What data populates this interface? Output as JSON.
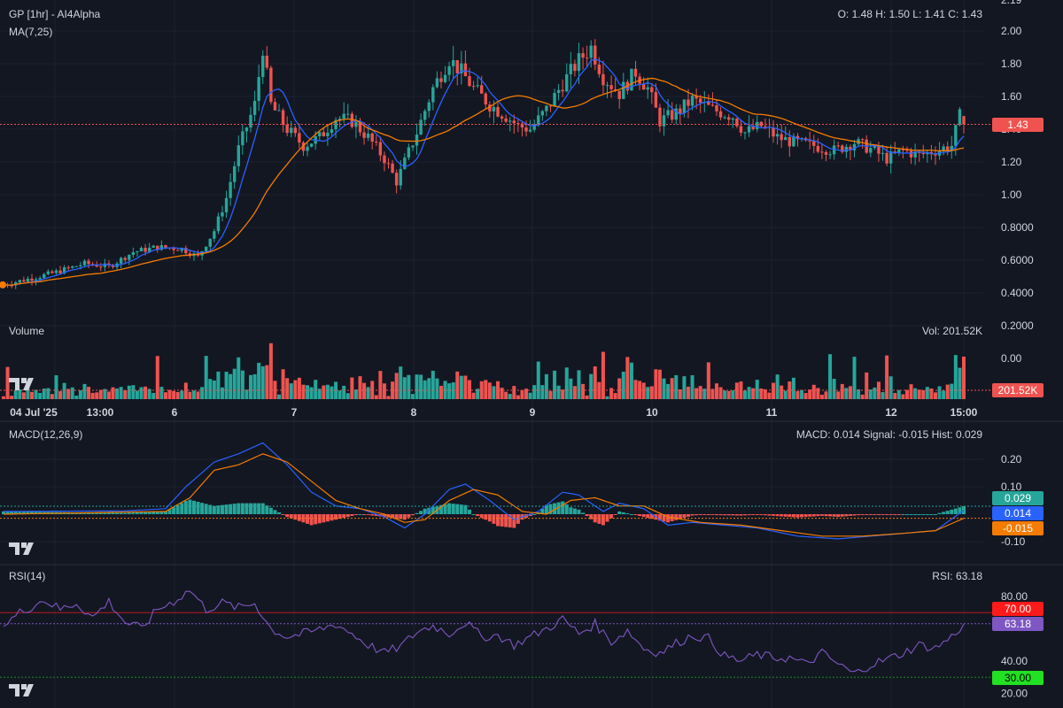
{
  "header": {
    "title": "GP [1hr] - AI4Alpha",
    "ohlc": "O: 1.48 H: 1.50 L: 1.41 C: 1.43",
    "ma_label": "MA(7,25)",
    "volume_label": "Volume",
    "volume_value": "Vol: 201.52K",
    "macd_label": "MACD(12,26,9)",
    "macd_value": "MACD: 0.014 Signal: -0.015 Hist: 0.029",
    "rsi_label": "RSI(14)",
    "rsi_value": "RSI: 63.18"
  },
  "badges": {
    "price": "1.43",
    "volume": "201.52K",
    "hist": "0.029",
    "macd": "0.014",
    "signal": "-0.015",
    "rsi70": "70.00",
    "rsi": "63.18",
    "rsi30": "30.00"
  },
  "colors": {
    "up": "#26a69a",
    "down": "#ef5350",
    "ma_fast": "#2962ff",
    "ma_slow": "#f57c00",
    "rsi": "#7e57c2",
    "background": "#131722"
  },
  "chart_data": [
    {
      "type": "candlestick",
      "title": "GP [1hr] - AI4Alpha",
      "x_ticks": [
        "04 Jul '25",
        "13:00",
        "6",
        "7",
        "8",
        "9",
        "10",
        "11",
        "12",
        "15:00"
      ],
      "y_ticks": [
        "0.00",
        "0.2000",
        "0.4000",
        "0.6000",
        "0.8000",
        "1.00",
        "1.20",
        "1.40",
        "1.60",
        "1.80",
        "2.00",
        "2.19"
      ],
      "ylim": [
        0,
        2.19
      ],
      "last_close": 1.43,
      "close_path": [
        [
          0,
          0.45
        ],
        [
          12,
          0.52
        ],
        [
          20,
          0.58
        ],
        [
          26,
          0.56
        ],
        [
          32,
          0.65
        ],
        [
          38,
          0.68
        ],
        [
          44,
          0.67
        ],
        [
          48,
          0.62
        ],
        [
          52,
          0.78
        ],
        [
          55,
          0.98
        ],
        [
          58,
          1.28
        ],
        [
          62,
          1.55
        ],
        [
          64,
          1.9
        ],
        [
          66,
          1.55
        ],
        [
          70,
          1.4
        ],
        [
          74,
          1.3
        ],
        [
          78,
          1.35
        ],
        [
          82,
          1.47
        ],
        [
          86,
          1.45
        ],
        [
          90,
          1.35
        ],
        [
          94,
          1.22
        ],
        [
          97,
          1.08
        ],
        [
          99,
          1.2
        ],
        [
          102,
          1.38
        ],
        [
          106,
          1.65
        ],
        [
          110,
          1.83
        ],
        [
          113,
          1.75
        ],
        [
          116,
          1.65
        ],
        [
          120,
          1.55
        ],
        [
          124,
          1.48
        ],
        [
          127,
          1.42
        ],
        [
          130,
          1.4
        ],
        [
          134,
          1.52
        ],
        [
          138,
          1.68
        ],
        [
          142,
          1.82
        ],
        [
          145,
          1.9
        ],
        [
          148,
          1.72
        ],
        [
          152,
          1.62
        ],
        [
          156,
          1.75
        ],
        [
          159,
          1.65
        ],
        [
          162,
          1.45
        ],
        [
          166,
          1.5
        ],
        [
          170,
          1.58
        ],
        [
          175,
          1.52
        ],
        [
          180,
          1.48
        ],
        [
          183,
          1.38
        ],
        [
          187,
          1.42
        ],
        [
          191,
          1.35
        ],
        [
          195,
          1.32
        ],
        [
          200,
          1.3
        ],
        [
          205,
          1.27
        ],
        [
          210,
          1.32
        ],
        [
          214,
          1.28
        ],
        [
          218,
          1.22
        ],
        [
          222,
          1.27
        ],
        [
          226,
          1.24
        ],
        [
          230,
          1.27
        ],
        [
          234,
          1.3
        ],
        [
          236,
          1.48
        ],
        [
          237,
          1.43
        ]
      ]
    },
    {
      "type": "bar",
      "title": "Volume",
      "last_value": "201.52K"
    },
    {
      "type": "line",
      "title": "MACD(12,26,9)",
      "y_ticks": [
        "-0.10",
        "0.10",
        "0.20"
      ],
      "ylim": [
        -0.13,
        0.28
      ],
      "macd": 0.014,
      "signal": -0.015,
      "hist": 0.029,
      "macd_path": [
        [
          0,
          0.01
        ],
        [
          30,
          0.012
        ],
        [
          40,
          0.02
        ],
        [
          45,
          0.1
        ],
        [
          52,
          0.19
        ],
        [
          58,
          0.22
        ],
        [
          64,
          0.26
        ],
        [
          70,
          0.18
        ],
        [
          76,
          0.08
        ],
        [
          82,
          0.03
        ],
        [
          88,
          0.02
        ],
        [
          94,
          -0.01
        ],
        [
          99,
          -0.05
        ],
        [
          104,
          0.0
        ],
        [
          110,
          0.09
        ],
        [
          114,
          0.11
        ],
        [
          120,
          0.05
        ],
        [
          126,
          -0.02
        ],
        [
          132,
          0.01
        ],
        [
          138,
          0.08
        ],
        [
          142,
          0.07
        ],
        [
          148,
          0.01
        ],
        [
          152,
          0.04
        ],
        [
          158,
          0.02
        ],
        [
          164,
          -0.04
        ],
        [
          170,
          -0.03
        ],
        [
          178,
          -0.04
        ],
        [
          186,
          -0.05
        ],
        [
          196,
          -0.08
        ],
        [
          206,
          -0.09
        ],
        [
          214,
          -0.08
        ],
        [
          222,
          -0.07
        ],
        [
          230,
          -0.06
        ],
        [
          237,
          0.014
        ]
      ],
      "signal_path": [
        [
          0,
          0.0
        ],
        [
          40,
          0.01
        ],
        [
          46,
          0.06
        ],
        [
          52,
          0.16
        ],
        [
          58,
          0.18
        ],
        [
          64,
          0.22
        ],
        [
          70,
          0.19
        ],
        [
          76,
          0.12
        ],
        [
          82,
          0.05
        ],
        [
          88,
          0.02
        ],
        [
          94,
          0.0
        ],
        [
          99,
          -0.03
        ],
        [
          104,
          -0.02
        ],
        [
          110,
          0.05
        ],
        [
          116,
          0.09
        ],
        [
          122,
          0.07
        ],
        [
          128,
          0.01
        ],
        [
          134,
          0.0
        ],
        [
          140,
          0.05
        ],
        [
          146,
          0.06
        ],
        [
          152,
          0.03
        ],
        [
          158,
          0.03
        ],
        [
          164,
          -0.01
        ],
        [
          172,
          -0.03
        ],
        [
          182,
          -0.04
        ],
        [
          192,
          -0.06
        ],
        [
          202,
          -0.08
        ],
        [
          212,
          -0.08
        ],
        [
          222,
          -0.07
        ],
        [
          230,
          -0.06
        ],
        [
          237,
          -0.015
        ]
      ]
    },
    {
      "type": "line",
      "title": "RSI(14)",
      "y_ticks": [
        "20.00",
        "40.00",
        "80.00"
      ],
      "ylim": [
        20,
        90
      ],
      "levels": [
        70,
        30
      ],
      "last_value": 63.18,
      "rsi_path": [
        [
          0,
          62
        ],
        [
          4,
          70
        ],
        [
          10,
          78
        ],
        [
          14,
          72
        ],
        [
          18,
          76
        ],
        [
          22,
          67
        ],
        [
          26,
          77
        ],
        [
          30,
          64
        ],
        [
          34,
          60
        ],
        [
          38,
          72
        ],
        [
          42,
          77
        ],
        [
          46,
          84
        ],
        [
          50,
          72
        ],
        [
          54,
          76
        ],
        [
          58,
          73
        ],
        [
          62,
          76
        ],
        [
          66,
          60
        ],
        [
          70,
          55
        ],
        [
          76,
          58
        ],
        [
          82,
          63
        ],
        [
          86,
          57
        ],
        [
          90,
          50
        ],
        [
          94,
          45
        ],
        [
          98,
          49
        ],
        [
          102,
          58
        ],
        [
          106,
          62
        ],
        [
          110,
          57
        ],
        [
          114,
          64
        ],
        [
          118,
          55
        ],
        [
          122,
          56
        ],
        [
          126,
          50
        ],
        [
          130,
          55
        ],
        [
          134,
          60
        ],
        [
          138,
          66
        ],
        [
          142,
          57
        ],
        [
          146,
          63
        ],
        [
          150,
          52
        ],
        [
          154,
          59
        ],
        [
          158,
          48
        ],
        [
          162,
          45
        ],
        [
          166,
          51
        ],
        [
          170,
          56
        ],
        [
          174,
          54
        ],
        [
          178,
          43
        ],
        [
          182,
          40
        ],
        [
          186,
          44
        ],
        [
          190,
          42
        ],
        [
          194,
          42
        ],
        [
          198,
          38
        ],
        [
          202,
          45
        ],
        [
          206,
          38
        ],
        [
          210,
          32
        ],
        [
          214,
          38
        ],
        [
          218,
          41
        ],
        [
          222,
          45
        ],
        [
          226,
          50
        ],
        [
          230,
          48
        ],
        [
          234,
          55
        ],
        [
          237,
          63
        ]
      ]
    }
  ]
}
